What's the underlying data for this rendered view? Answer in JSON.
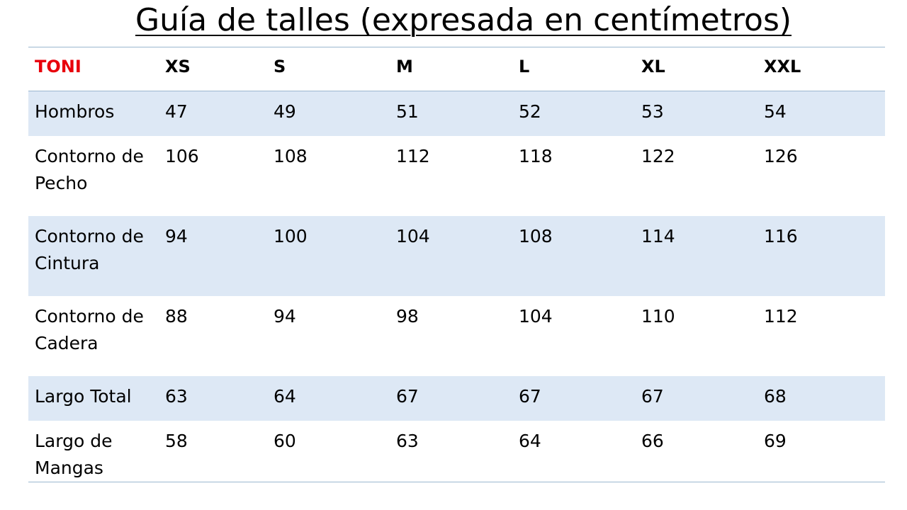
{
  "title": "Guía de talles (expresada en centímetros)",
  "table": {
    "brand": "TONI",
    "sizes": [
      "XS",
      "S",
      "M",
      "L",
      "XL",
      "XXL"
    ],
    "rows": [
      {
        "label": "Hombros",
        "values": [
          "47",
          "49",
          "51",
          "52",
          "53",
          "54"
        ]
      },
      {
        "label": "Contorno de Pecho",
        "values": [
          "106",
          "108",
          "112",
          "118",
          "122",
          "126"
        ]
      },
      {
        "label": "Contorno de Cintura",
        "values": [
          "94",
          "100",
          "104",
          "108",
          "114",
          "116"
        ]
      },
      {
        "label": "Contorno de Cadera",
        "values": [
          "88",
          "94",
          "98",
          "104",
          "110",
          "112"
        ]
      },
      {
        "label": "Largo Total",
        "values": [
          "63",
          "64",
          "67",
          "67",
          "67",
          "68"
        ]
      },
      {
        "label": "Largo de Mangas",
        "values": [
          "58",
          "60",
          "63",
          "64",
          "66",
          "69"
        ]
      }
    ]
  },
  "colors": {
    "brand_red": "#e8000b",
    "row_shade": "#dde8f5",
    "rule": "#9bb7cf"
  }
}
